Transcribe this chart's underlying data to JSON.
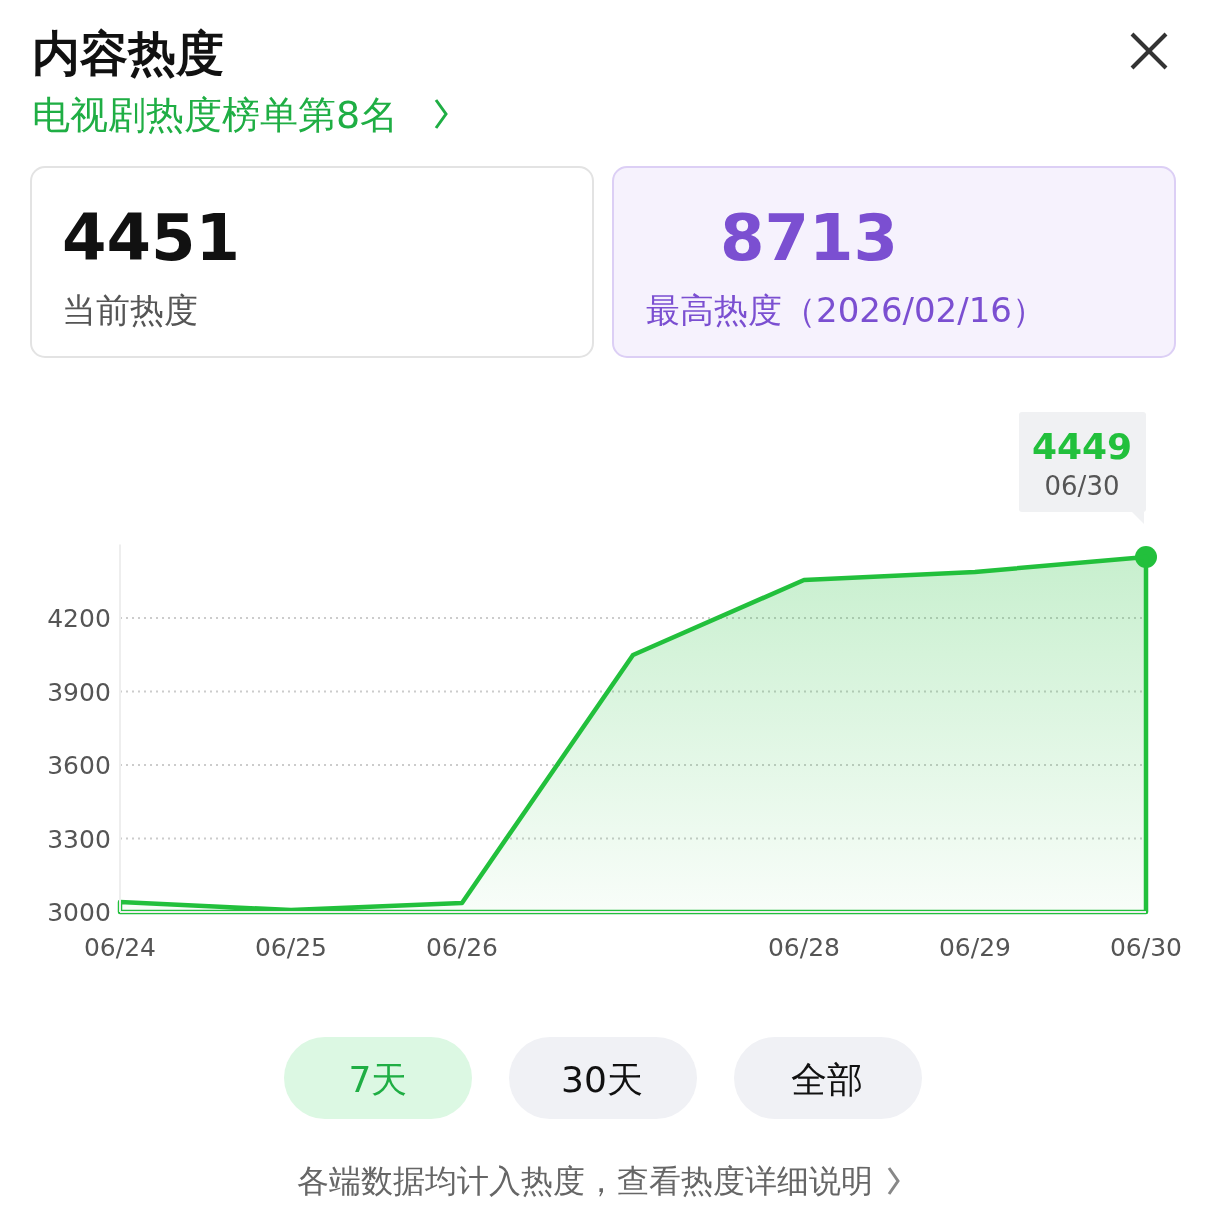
{
  "chart_data": {
    "type": "area",
    "title": "内容热度",
    "subtitle": "电视剧热度榜单第8名",
    "categories": [
      "06/24",
      "06/25",
      "06/26",
      null,
      "06/28",
      "06/29",
      "06/30"
    ],
    "series": [
      {
        "color": "#22c03c",
        "values": [
          3041,
          3008,
          3037,
          4049,
          4355,
          4388,
          4449
        ]
      }
    ],
    "ylim": [
      3000,
      4500
    ],
    "yticks": [
      3000,
      3300,
      3600,
      3900,
      4200
    ],
    "grid": "y",
    "marker": "none",
    "annotations": [
      "4451",
      "当前热度",
      "8713",
      "最高热度（2026/02/16）",
      "7天",
      "30天",
      "全部",
      "各端数据均计入热度，查看热度详细说明",
      "4449",
      "06/30"
    ]
  }
}
